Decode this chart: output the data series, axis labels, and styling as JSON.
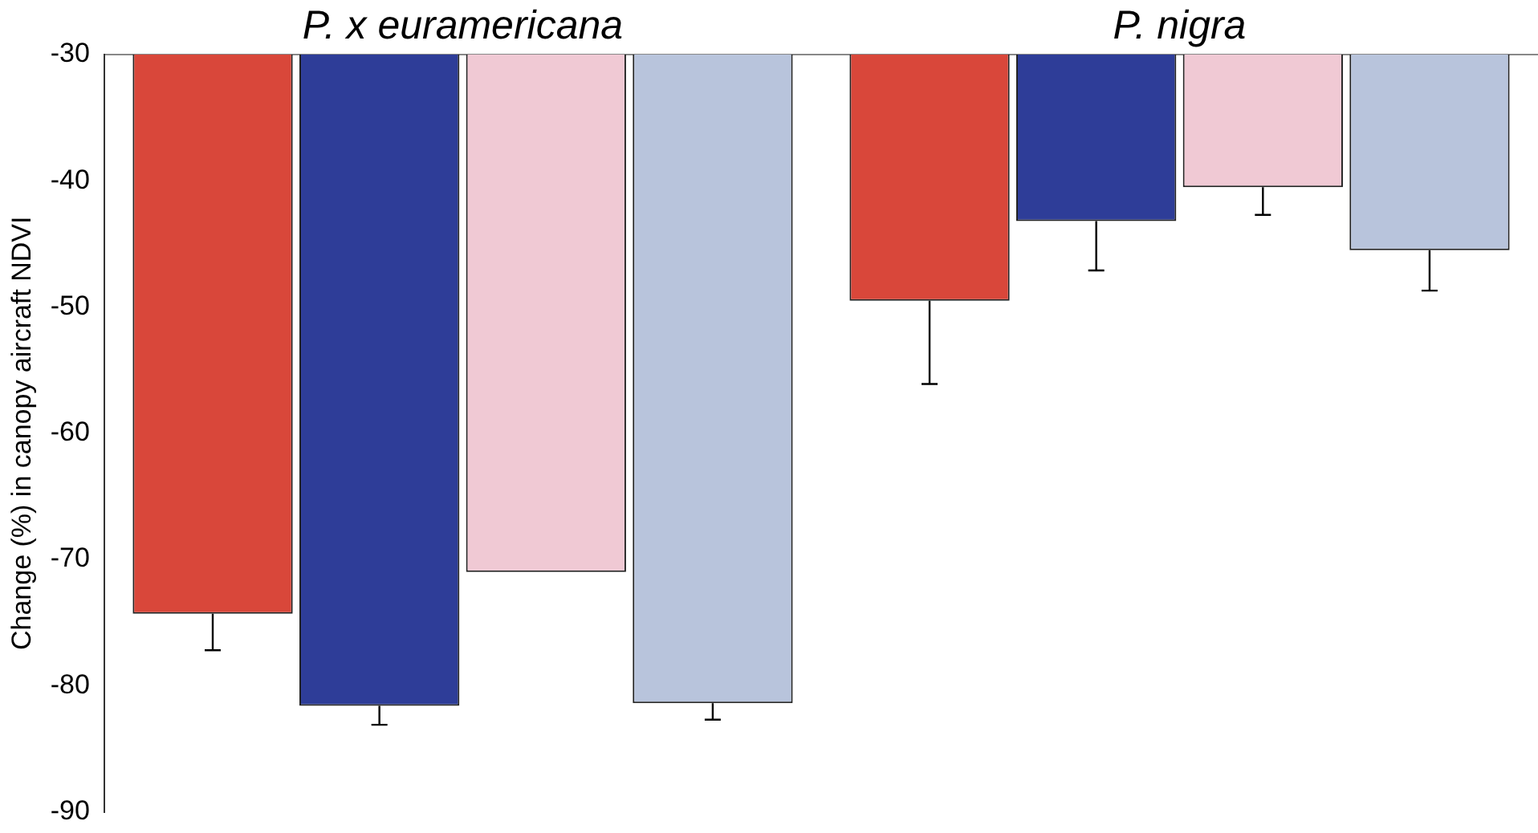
{
  "chart_data": {
    "type": "bar",
    "ylabel": "Change (%) in canopy aircraft NDVI",
    "categories": [
      "P. x euramericana",
      "P. nigra"
    ],
    "series": [
      {
        "color": "#d9473a",
        "values": [
          -74.3,
          -49.5
        ],
        "errors": [
          [
            -77.2,
            -74.3
          ],
          [
            -56.1,
            -49.5
          ]
        ]
      },
      {
        "color": "#2e3d98",
        "values": [
          -81.6,
          -43.2
        ],
        "errors": [
          [
            -83.1,
            -81.6
          ],
          [
            -47.1,
            -43.2
          ]
        ]
      },
      {
        "color": "#f0c9d4",
        "values": [
          -71.0,
          -40.5
        ],
        "errors": [
          null,
          [
            -42.7,
            -40.5
          ]
        ]
      },
      {
        "color": "#b8c4dc",
        "values": [
          -81.4,
          -45.5
        ],
        "errors": [
          [
            -82.7,
            -81.4
          ],
          [
            -48.7,
            -45.5
          ]
        ]
      }
    ],
    "ylim": [
      -90,
      -30
    ],
    "yticks": [
      -90,
      -80,
      -70,
      -60,
      -50,
      -40,
      -30
    ],
    "grid": false,
    "legend": false
  }
}
